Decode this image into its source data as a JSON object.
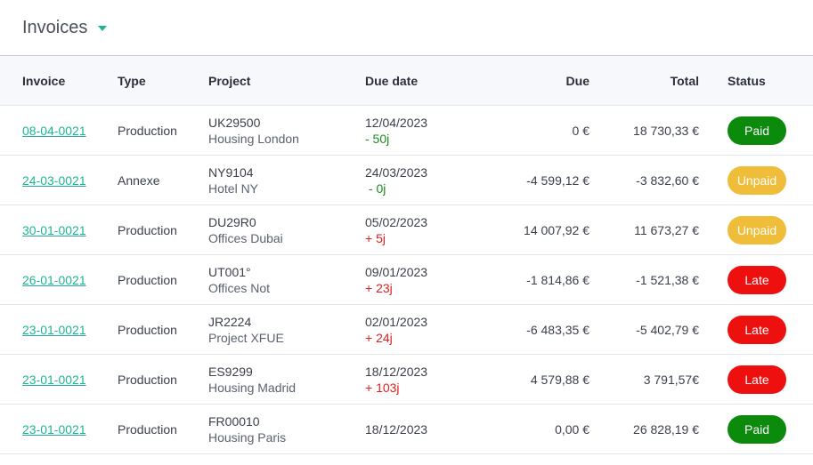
{
  "header": {
    "title": "Invoices"
  },
  "columns": {
    "invoice": "Invoice",
    "type": "Type",
    "project": "Project",
    "due_date": "Due date",
    "due": "Due",
    "total": "Total",
    "status": "Status"
  },
  "status_colors": {
    "Paid": "#0b8a0b",
    "Unpaid": "#efbd3a",
    "Late": "#ee0f0f"
  },
  "rows": [
    {
      "invoice": "08-04-0021",
      "type": "Production",
      "project_code": "UK29500",
      "project_name": "Housing London",
      "due_date": "12/04/2023",
      "delta": "- 50j",
      "delta_kind": "neg",
      "due": "0 €",
      "total": "18 730,33 €",
      "status": "Paid"
    },
    {
      "invoice": "24-03-0021",
      "type": "Annexe",
      "project_code": "NY9104",
      "project_name": "Hotel NY",
      "due_date": "24/03/2023",
      "delta": " - 0j",
      "delta_kind": "neg",
      "due": "-4 599,12 €",
      "total": "-3 832,60 €",
      "status": "Unpaid"
    },
    {
      "invoice": "30-01-0021",
      "type": "Production",
      "project_code": "DU29R0",
      "project_name": "Offices Dubai",
      "due_date": "05/02/2023",
      "delta": "+ 5j",
      "delta_kind": "pos",
      "due": "14 007,92 €",
      "total": "11 673,27 €",
      "status": "Unpaid"
    },
    {
      "invoice": "26-01-0021",
      "type": "Production",
      "project_code": "UT001°",
      "project_name": "Offices Not",
      "due_date": "09/01/2023",
      "delta": "+ 23j",
      "delta_kind": "pos",
      "due": "-1 814,86 €",
      "total": "-1 521,38 €",
      "status": "Late"
    },
    {
      "invoice": "23-01-0021",
      "type": "Production",
      "project_code": "JR2224",
      "project_name": "Project XFUE",
      "due_date": "02/01/2023",
      "delta": "+ 24j",
      "delta_kind": "pos",
      "due": "-6 483,35 €",
      "total": "-5 402,79 €",
      "status": "Late"
    },
    {
      "invoice": "23-01-0021",
      "type": "Production",
      "project_code": "ES9299",
      "project_name": "Housing Madrid",
      "due_date": "18/12/2023",
      "delta": "+ 103j",
      "delta_kind": "pos",
      "due": "4 579,88 €",
      "total": "3 791,57€",
      "status": "Late"
    },
    {
      "invoice": "23-01-0021",
      "type": "Production",
      "project_code": "FR00010",
      "project_name": "Housing Paris",
      "due_date": "18/12/2023",
      "delta": "",
      "delta_kind": "none",
      "due": "0,00 €",
      "total": "26 828,19 €",
      "status": "Paid"
    }
  ]
}
